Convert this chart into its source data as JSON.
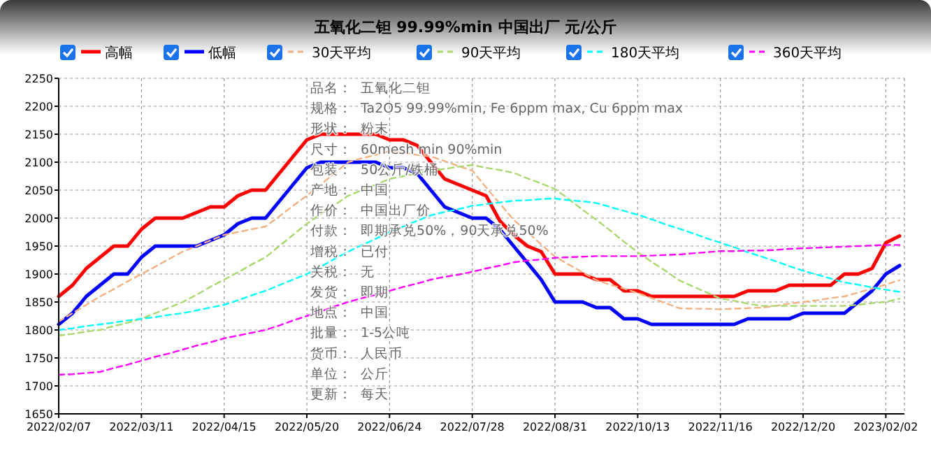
{
  "chart_data": {
    "type": "line",
    "title": "五氧化二钽 99.99%min 中国出厂 元/公斤",
    "categories": [
      "2022/02/07",
      null,
      null,
      null,
      null,
      null,
      "2022/03/11",
      null,
      null,
      null,
      null,
      null,
      "2022/04/15",
      null,
      null,
      null,
      null,
      null,
      "2022/05/20",
      null,
      null,
      null,
      null,
      null,
      "2022/06/24",
      null,
      null,
      null,
      null,
      null,
      "2022/07/28",
      null,
      null,
      null,
      null,
      null,
      "2022/08/31",
      null,
      null,
      null,
      null,
      null,
      "2022/10/13",
      null,
      null,
      null,
      null,
      null,
      "2022/11/16",
      null,
      null,
      null,
      null,
      null,
      "2022/12/20",
      null,
      null,
      null,
      null,
      null,
      "2023/02/02",
      null
    ],
    "series": [
      {
        "name": "高幅",
        "color": "#ff0000",
        "line_style": "solid",
        "values": [
          1860,
          1880,
          1910,
          1930,
          1950,
          1950,
          1980,
          2000,
          2000,
          2000,
          2010,
          2020,
          2020,
          2040,
          2050,
          2050,
          2080,
          2110,
          2140,
          2150,
          2150,
          2150,
          2150,
          2150,
          2140,
          2140,
          2130,
          2100,
          2070,
          2060,
          2050,
          2040,
          1995,
          1970,
          1950,
          1940,
          1900,
          1900,
          1900,
          1890,
          1890,
          1870,
          1870,
          1860,
          1860,
          1860,
          1860,
          1860,
          1860,
          1860,
          1870,
          1870,
          1870,
          1880,
          1880,
          1880,
          1880,
          1900,
          1900,
          1910,
          1956,
          1968
        ]
      },
      {
        "name": "低幅",
        "color": "#0000ff",
        "line_style": "solid",
        "values": [
          1810,
          1830,
          1860,
          1880,
          1900,
          1900,
          1930,
          1950,
          1950,
          1950,
          1950,
          1960,
          1970,
          1990,
          2000,
          2000,
          2030,
          2060,
          2090,
          2100,
          2100,
          2100,
          2100,
          2100,
          2090,
          2090,
          2080,
          2050,
          2020,
          2010,
          2000,
          2000,
          1980,
          1950,
          1920,
          1890,
          1850,
          1850,
          1850,
          1840,
          1840,
          1820,
          1820,
          1810,
          1810,
          1810,
          1810,
          1810,
          1810,
          1810,
          1820,
          1820,
          1820,
          1820,
          1830,
          1830,
          1830,
          1830,
          1850,
          1870,
          1900,
          1915
        ]
      },
      {
        "name": "30天平均",
        "color": "#f4b183",
        "line_style": "dashed",
        "values": [
          1815,
          1830,
          1845,
          1860,
          1873,
          1887,
          1900,
          1913,
          1927,
          1940,
          1950,
          1960,
          1970,
          1975,
          1980,
          1985,
          2003,
          2022,
          2040,
          2060,
          2080,
          2100,
          2107,
          2113,
          2120,
          2117,
          2113,
          2110,
          2102,
          2093,
          2085,
          2055,
          2026,
          1997,
          1975,
          1953,
          1931,
          1917,
          1903,
          1889,
          1881,
          1874,
          1866,
          1857,
          1848,
          1839,
          1838,
          1838,
          1837,
          1838,
          1839,
          1840,
          1843,
          1847,
          1850,
          1853,
          1857,
          1860,
          1867,
          1874,
          1881,
          1889
        ]
      },
      {
        "name": "90天平均",
        "color": "#a9d86e",
        "line_style": "dashed",
        "values": [
          1790,
          1793,
          1797,
          1800,
          1807,
          1813,
          1820,
          1830,
          1840,
          1850,
          1863,
          1877,
          1890,
          1903,
          1917,
          1930,
          1950,
          1970,
          1990,
          2007,
          2023,
          2040,
          2050,
          2060,
          2070,
          2075,
          2080,
          2085,
          2088,
          2092,
          2095,
          2090,
          2086,
          2081,
          2071,
          2062,
          2052,
          2034,
          2015,
          1997,
          1978,
          1958,
          1939,
          1922,
          1906,
          1889,
          1878,
          1867,
          1856,
          1852,
          1847,
          1843,
          1843,
          1843,
          1843,
          1843,
          1843,
          1843,
          1845,
          1848,
          1850,
          1856
        ]
      },
      {
        "name": "180天平均",
        "color": "#00ffff",
        "line_style": "dashed",
        "values": [
          1800,
          1803,
          1807,
          1810,
          1813,
          1817,
          1820,
          1823,
          1827,
          1830,
          1835,
          1840,
          1845,
          1853,
          1862,
          1870,
          1880,
          1890,
          1900,
          1913,
          1927,
          1940,
          1952,
          1963,
          1975,
          1985,
          1995,
          2005,
          2011,
          2016,
          2022,
          2025,
          2028,
          2031,
          2032,
          2034,
          2035,
          2032,
          2030,
          2027,
          2020,
          2013,
          2006,
          1998,
          1989,
          1981,
          1973,
          1964,
          1956,
          1948,
          1939,
          1931,
          1923,
          1914,
          1906,
          1899,
          1892,
          1885,
          1881,
          1876,
          1872,
          1868
        ]
      },
      {
        "name": "360天平均",
        "color": "#ff00ff",
        "line_style": "dashed",
        "values": [
          1720,
          1721,
          1723,
          1725,
          1732,
          1738,
          1745,
          1752,
          1758,
          1765,
          1772,
          1778,
          1785,
          1790,
          1795,
          1800,
          1808,
          1817,
          1825,
          1833,
          1842,
          1850,
          1857,
          1863,
          1870,
          1877,
          1883,
          1890,
          1895,
          1899,
          1904,
          1910,
          1915,
          1921,
          1924,
          1926,
          1929,
          1930,
          1931,
          1932,
          1932,
          1932,
          1932,
          1933,
          1934,
          1935,
          1937,
          1939,
          1941,
          1941,
          1942,
          1942,
          1943,
          1945,
          1946,
          1947,
          1948,
          1949,
          1950,
          1951,
          1952,
          1952
        ]
      }
    ],
    "ylim": [
      1650,
      2250
    ],
    "yticks": [
      1650,
      1700,
      1750,
      1800,
      1850,
      1900,
      1950,
      2000,
      2050,
      2100,
      2150,
      2200,
      2250
    ],
    "grid": true,
    "legend": "top",
    "marker": "none",
    "annotations": [
      "品名：  五氧化二钽",
      "规格：  Ta2O5 99.99%min, Fe 6ppm max, Cu 6ppm max",
      "形状：  粉末",
      "尺寸：  60mesh min 90%min",
      "包装：  50公斤/铁桶",
      "产地：  中国",
      "作价：  中国出厂价",
      "付款：  即期承兑50%，90天承兑50%",
      "增税：  已付",
      "关税：  无",
      "发货：  即期",
      "地点：  中国",
      "批量：  1-5公吨",
      "货币：  人民币",
      "单位：  公斤",
      "更新：  每天"
    ]
  }
}
